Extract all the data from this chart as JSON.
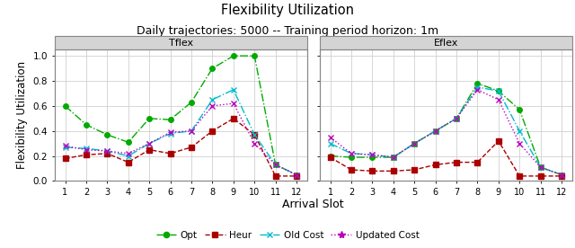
{
  "title": "Flexibility Utilization",
  "subtitle": "Daily trajectories: 5000 -- Training period horizon: 1m",
  "xlabel": "Arrival Slot",
  "ylabel": "Flexibility Utilization",
  "panel_labels": [
    "Tflex",
    "Eflex"
  ],
  "x": [
    1,
    2,
    3,
    4,
    5,
    6,
    7,
    8,
    9,
    10,
    11,
    12
  ],
  "tflex": {
    "opt": [
      0.6,
      0.45,
      0.37,
      0.31,
      0.5,
      0.49,
      0.63,
      0.9,
      1.0,
      1.0,
      0.13,
      0.05
    ],
    "heur": [
      0.18,
      0.21,
      0.22,
      0.15,
      0.25,
      0.22,
      0.27,
      0.4,
      0.5,
      0.37,
      0.04,
      0.04
    ],
    "old_cost": [
      0.27,
      0.26,
      0.24,
      0.2,
      0.3,
      0.38,
      0.4,
      0.65,
      0.73,
      0.37,
      0.13,
      0.05
    ],
    "updated_cost": [
      0.28,
      0.25,
      0.24,
      0.22,
      0.3,
      0.39,
      0.4,
      0.6,
      0.62,
      0.3,
      0.13,
      0.05
    ]
  },
  "eflex": {
    "opt": [
      0.2,
      0.19,
      0.19,
      0.19,
      0.3,
      0.4,
      0.5,
      0.78,
      0.72,
      0.57,
      0.11,
      0.05
    ],
    "heur": [
      0.19,
      0.09,
      0.08,
      0.08,
      0.09,
      0.13,
      0.15,
      0.15,
      0.32,
      0.04,
      0.04,
      0.04
    ],
    "old_cost": [
      0.3,
      0.22,
      0.21,
      0.19,
      0.3,
      0.4,
      0.5,
      0.75,
      0.72,
      0.4,
      0.11,
      0.05
    ],
    "updated_cost": [
      0.35,
      0.22,
      0.21,
      0.19,
      0.3,
      0.4,
      0.5,
      0.73,
      0.65,
      0.3,
      0.11,
      0.05
    ]
  },
  "colors": {
    "opt": "#00aa00",
    "heur": "#aa0000",
    "old_cost": "#00bbcc",
    "updated_cost": "#bb00bb"
  },
  "markers": {
    "opt": "o",
    "heur": "s",
    "old_cost": "x",
    "updated_cost": "x"
  },
  "linestyles": {
    "opt": "-.",
    "heur": "--",
    "old_cost": "-.",
    "updated_cost": ":"
  },
  "markersize": {
    "opt": 4,
    "heur": 4,
    "old_cost": 5,
    "updated_cost": 5
  },
  "legend_labels": [
    "Opt",
    "Heur",
    "Old Cost",
    "Updated Cost"
  ],
  "ylim": [
    0.0,
    1.05
  ],
  "yticks": [
    0.0,
    0.2,
    0.4,
    0.6,
    0.8,
    1.0
  ],
  "panel_bg": "#ffffff",
  "outer_bg": "#e8e8e8",
  "grid_color": "#d0d0d0",
  "header_bg": "#d4d4d4",
  "header_edge": "#888888"
}
